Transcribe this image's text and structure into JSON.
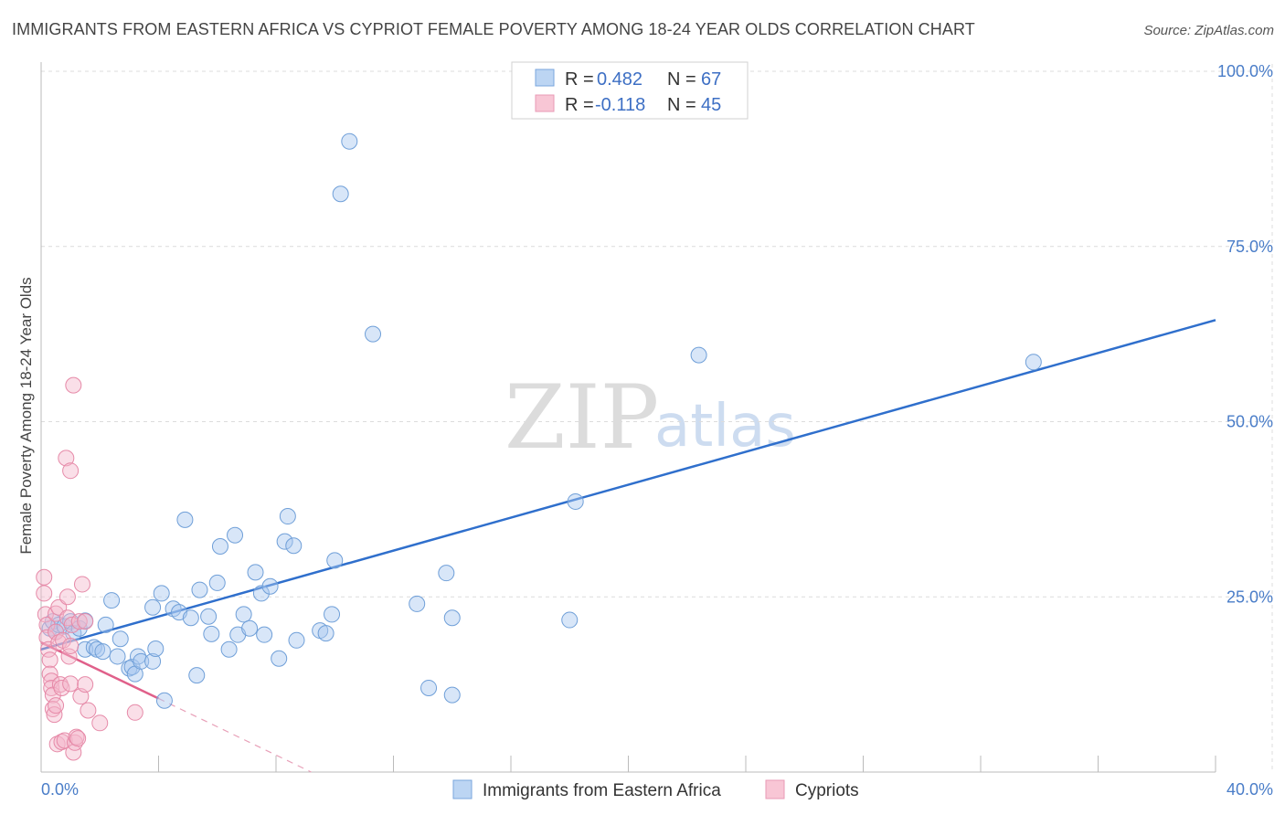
{
  "header": {
    "title": "IMMIGRANTS FROM EASTERN AFRICA VS CYPRIOT FEMALE POVERTY AMONG 18-24 YEAR OLDS CORRELATION CHART",
    "source": "Source: ZipAtlas.com"
  },
  "watermark": {
    "zip": "ZIP",
    "atlas": "atlas"
  },
  "legend": {
    "r_label": "R =",
    "n_label": "N =",
    "rows": [
      {
        "r": "0.482",
        "n": "67",
        "color": "#a8c8f0"
      },
      {
        "r": "-0.118",
        "n": "45",
        "color": "#f5b8cb"
      }
    ]
  },
  "chart_data": {
    "type": "scatter",
    "title": "IMMIGRANTS FROM EASTERN AFRICA VS CYPRIOT FEMALE POVERTY AMONG 18-24 YEAR OLDS CORRELATION CHART",
    "xlabel": "",
    "ylabel": "Female Poverty Among 18-24 Year Olds",
    "xlim": [
      0,
      40
    ],
    "ylim": [
      0,
      100
    ],
    "x_tick_labels": [
      {
        "value": 0,
        "label": "0.0%"
      },
      {
        "value": 40,
        "label": "40.0%"
      }
    ],
    "y_tick_labels": [
      {
        "value": 25,
        "label": "25.0%"
      },
      {
        "value": 50,
        "label": "50.0%"
      },
      {
        "value": 75,
        "label": "75.0%"
      },
      {
        "value": 100,
        "label": "100.0%"
      }
    ],
    "series": [
      {
        "name": "Immigrants from Eastern Africa",
        "color": "#a8c8f0",
        "stroke": "#6f9fd8",
        "trend": {
          "x0": 0,
          "y0": 17.5,
          "x1": 40,
          "y1": 64.5,
          "color": "#2f6fcc"
        },
        "points": [
          [
            0.3,
            20.5
          ],
          [
            0.4,
            21.5
          ],
          [
            0.5,
            20
          ],
          [
            0.6,
            21
          ],
          [
            0.8,
            20.8
          ],
          [
            1.0,
            21.5
          ],
          [
            1.1,
            19.8
          ],
          [
            1.3,
            20.5
          ],
          [
            1.5,
            21.6
          ],
          [
            1.5,
            17.5
          ],
          [
            1.8,
            17.8
          ],
          [
            1.9,
            17.5
          ],
          [
            2.1,
            17.2
          ],
          [
            2.2,
            21
          ],
          [
            2.4,
            24.5
          ],
          [
            2.6,
            16.5
          ],
          [
            2.7,
            19
          ],
          [
            3.0,
            14.8
          ],
          [
            3.1,
            15
          ],
          [
            3.2,
            14
          ],
          [
            3.3,
            16.5
          ],
          [
            3.4,
            15.8
          ],
          [
            3.8,
            15.8
          ],
          [
            3.8,
            23.5
          ],
          [
            3.9,
            17.6
          ],
          [
            4.1,
            25.5
          ],
          [
            4.2,
            10.2
          ],
          [
            4.5,
            23.3
          ],
          [
            4.7,
            22.8
          ],
          [
            4.9,
            36.0
          ],
          [
            5.1,
            22
          ],
          [
            5.3,
            13.8
          ],
          [
            5.4,
            26
          ],
          [
            5.7,
            22.2
          ],
          [
            5.8,
            19.7
          ],
          [
            6.0,
            27
          ],
          [
            6.1,
            32.2
          ],
          [
            6.4,
            17.5
          ],
          [
            6.6,
            33.8
          ],
          [
            6.7,
            19.6
          ],
          [
            6.9,
            22.5
          ],
          [
            7.1,
            20.5
          ],
          [
            7.3,
            28.5
          ],
          [
            7.5,
            25.5
          ],
          [
            7.6,
            19.6
          ],
          [
            7.8,
            26.5
          ],
          [
            8.1,
            16.2
          ],
          [
            8.3,
            32.9
          ],
          [
            8.4,
            36.5
          ],
          [
            8.6,
            32.3
          ],
          [
            8.7,
            18.8
          ],
          [
            9.5,
            20.2
          ],
          [
            9.7,
            19.8
          ],
          [
            9.9,
            22.5
          ],
          [
            10.0,
            30.2
          ],
          [
            10.2,
            82.5
          ],
          [
            10.5,
            90.0
          ],
          [
            11.3,
            62.5
          ],
          [
            12.8,
            24
          ],
          [
            13.2,
            12.0
          ],
          [
            13.8,
            28.4
          ],
          [
            14.0,
            22.0
          ],
          [
            14.0,
            11.0
          ],
          [
            18.0,
            21.7
          ],
          [
            18.2,
            38.6
          ],
          [
            22.4,
            59.5
          ],
          [
            33.8,
            58.5
          ]
        ]
      },
      {
        "name": "Cypriots",
        "color": "#f5b8cb",
        "stroke": "#e68aa8",
        "trend": {
          "x0": 0,
          "y0": 18.5,
          "x1": 4.0,
          "y1": 10.5,
          "color": "#e0608a"
        },
        "trend_ext": {
          "x0": 4.0,
          "y0": 10.5,
          "x1": 9.2,
          "y1": 0,
          "color": "#e8a0b8"
        },
        "points": [
          [
            0.1,
            27.8
          ],
          [
            0.1,
            25.5
          ],
          [
            0.15,
            22.5
          ],
          [
            0.2,
            21
          ],
          [
            0.2,
            19.2
          ],
          [
            0.25,
            17.5
          ],
          [
            0.3,
            16
          ],
          [
            0.3,
            14
          ],
          [
            0.35,
            13
          ],
          [
            0.35,
            12
          ],
          [
            0.4,
            11
          ],
          [
            0.4,
            9.0
          ],
          [
            0.45,
            8.2
          ],
          [
            0.5,
            22.6
          ],
          [
            0.5,
            20.0
          ],
          [
            0.55,
            4.0
          ],
          [
            0.6,
            23.5
          ],
          [
            0.6,
            18.5
          ],
          [
            0.65,
            12.5
          ],
          [
            0.7,
            12
          ],
          [
            0.7,
            4.3
          ],
          [
            0.75,
            18.8
          ],
          [
            0.8,
            4.5
          ],
          [
            0.85,
            44.8
          ],
          [
            0.9,
            22
          ],
          [
            0.9,
            25
          ],
          [
            0.95,
            16.5
          ],
          [
            1.0,
            43.0
          ],
          [
            1.0,
            12.6
          ],
          [
            1.05,
            21
          ],
          [
            1.1,
            55.2
          ],
          [
            1.1,
            2.8
          ],
          [
            1.15,
            4.2
          ],
          [
            1.2,
            5.0
          ],
          [
            1.25,
            4.8
          ],
          [
            1.3,
            21.5
          ],
          [
            1.35,
            10.8
          ],
          [
            1.4,
            26.8
          ],
          [
            1.5,
            21.5
          ],
          [
            1.6,
            8.8
          ],
          [
            1.0,
            18.0
          ],
          [
            0.5,
            9.5
          ],
          [
            1.5,
            12.5
          ],
          [
            2.0,
            7.0
          ],
          [
            3.2,
            8.5
          ]
        ]
      }
    ],
    "legend_position": "top-center"
  }
}
